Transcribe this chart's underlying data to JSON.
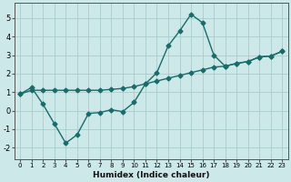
{
  "xlabel": "Humidex (Indice chaleur)",
  "background_color": "#cce8e8",
  "grid_color": "#aacccc",
  "line_color": "#1a6b6b",
  "xlim": [
    -0.5,
    23.5
  ],
  "ylim": [
    -2.6,
    5.8
  ],
  "xticks": [
    0,
    1,
    2,
    3,
    4,
    5,
    6,
    7,
    8,
    9,
    10,
    11,
    12,
    13,
    14,
    15,
    16,
    17,
    18,
    19,
    20,
    21,
    22,
    23
  ],
  "yticks": [
    -2,
    -1,
    0,
    1,
    2,
    3,
    4,
    5
  ],
  "line1_x": [
    0,
    1,
    2,
    3,
    4,
    5,
    6,
    7,
    8,
    9,
    10,
    11,
    12,
    13,
    14,
    15,
    16,
    17,
    18,
    19,
    20,
    21,
    22,
    23
  ],
  "line1_y": [
    0.9,
    1.25,
    0.35,
    -0.7,
    -1.75,
    -1.3,
    -0.15,
    -0.1,
    0.05,
    -0.05,
    0.45,
    1.45,
    2.05,
    3.5,
    4.3,
    5.2,
    4.75,
    3.0,
    2.4,
    2.55,
    2.65,
    2.9,
    2.95,
    3.2
  ],
  "line2_x": [
    0,
    1,
    2,
    3,
    4,
    5,
    6,
    7,
    8,
    9,
    10,
    11,
    12,
    13,
    14,
    15,
    16,
    17,
    18,
    19,
    20,
    21,
    22,
    23
  ],
  "line2_y": [
    0.9,
    1.1,
    1.1,
    1.1,
    1.1,
    1.1,
    1.1,
    1.1,
    1.15,
    1.2,
    1.3,
    1.45,
    1.6,
    1.75,
    1.9,
    2.05,
    2.2,
    2.35,
    2.4,
    2.55,
    2.65,
    2.9,
    2.95,
    3.2
  ],
  "marker": "D",
  "markersize": 2.5,
  "linewidth": 1.0
}
